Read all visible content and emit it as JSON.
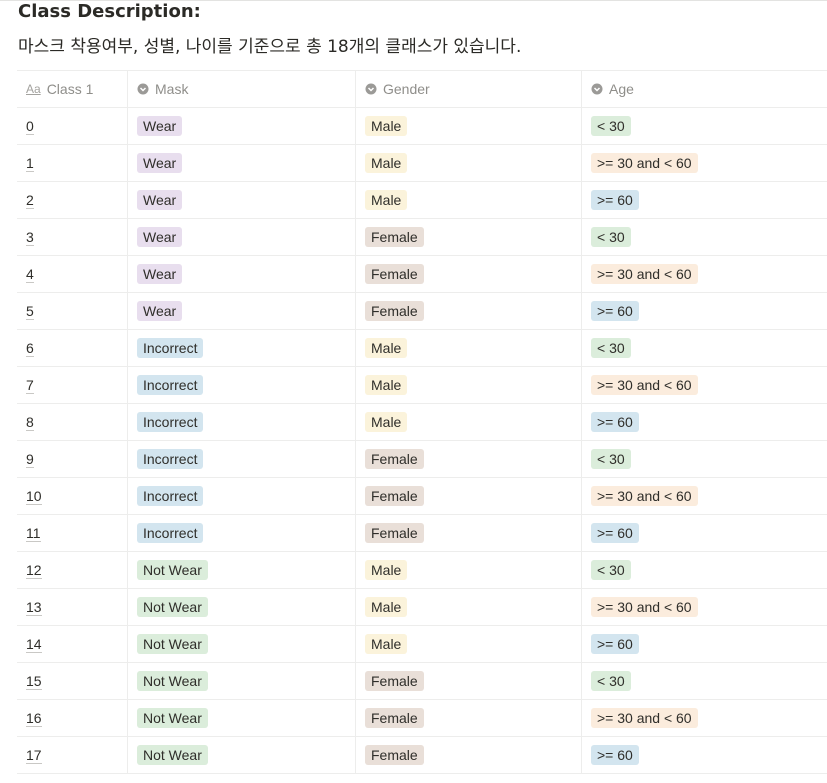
{
  "title": "Class Description:",
  "description": "마스크 착용여부, 성별, 나이를 기준으로 총 18개의 클래스가 있습니다.",
  "columns": {
    "class": "Class 1",
    "mask": "Mask",
    "gender": "Gender",
    "age": "Age"
  },
  "colors": {
    "Wear": "#e8deee",
    "Incorrect": "#d3e5ef",
    "Not Wear": "#dbeddb",
    "Male": "#fbf3db",
    "Female": "#e9dfd8",
    "< 30": "#dbeddb",
    ">= 30 and < 60": "#fbecdd",
    ">= 60": "#d3e5ef"
  },
  "rows": [
    {
      "class": "0",
      "mask": "Wear",
      "gender": "Male",
      "age": "< 30"
    },
    {
      "class": "1",
      "mask": "Wear",
      "gender": "Male",
      "age": ">= 30 and < 60"
    },
    {
      "class": "2",
      "mask": "Wear",
      "gender": "Male",
      "age": ">= 60"
    },
    {
      "class": "3",
      "mask": "Wear",
      "gender": "Female",
      "age": "< 30"
    },
    {
      "class": "4",
      "mask": "Wear",
      "gender": "Female",
      "age": ">= 30 and < 60"
    },
    {
      "class": "5",
      "mask": "Wear",
      "gender": "Female",
      "age": ">= 60"
    },
    {
      "class": "6",
      "mask": "Incorrect",
      "gender": "Male",
      "age": "< 30"
    },
    {
      "class": "7",
      "mask": "Incorrect",
      "gender": "Male",
      "age": ">= 30 and < 60"
    },
    {
      "class": "8",
      "mask": "Incorrect",
      "gender": "Male",
      "age": ">= 60"
    },
    {
      "class": "9",
      "mask": "Incorrect",
      "gender": "Female",
      "age": "< 30"
    },
    {
      "class": "10",
      "mask": "Incorrect",
      "gender": "Female",
      "age": ">= 30 and < 60"
    },
    {
      "class": "11",
      "mask": "Incorrect",
      "gender": "Female",
      "age": ">= 60"
    },
    {
      "class": "12",
      "mask": "Not Wear",
      "gender": "Male",
      "age": "< 30"
    },
    {
      "class": "13",
      "mask": "Not Wear",
      "gender": "Male",
      "age": ">= 30 and < 60"
    },
    {
      "class": "14",
      "mask": "Not Wear",
      "gender": "Male",
      "age": ">= 60"
    },
    {
      "class": "15",
      "mask": "Not Wear",
      "gender": "Female",
      "age": "< 30"
    },
    {
      "class": "16",
      "mask": "Not Wear",
      "gender": "Female",
      "age": ">= 30 and < 60"
    },
    {
      "class": "17",
      "mask": "Not Wear",
      "gender": "Female",
      "age": ">= 60"
    }
  ]
}
